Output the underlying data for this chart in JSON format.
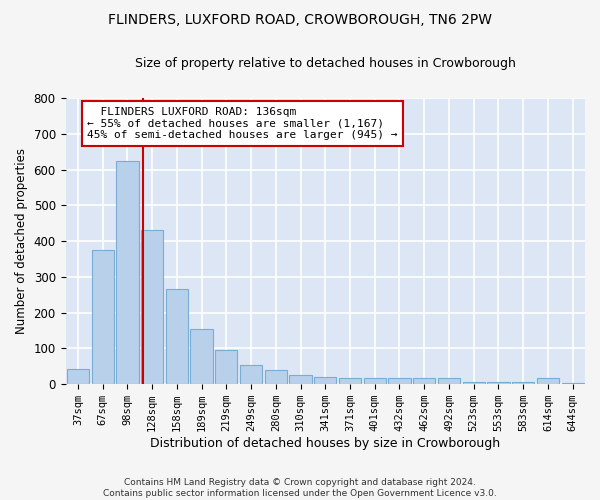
{
  "title": "FLINDERS, LUXFORD ROAD, CROWBOROUGH, TN6 2PW",
  "subtitle": "Size of property relative to detached houses in Crowborough",
  "xlabel": "Distribution of detached houses by size in Crowborough",
  "ylabel": "Number of detached properties",
  "bar_color": "#b8d0ea",
  "bar_edge_color": "#7aadd4",
  "background_color": "#dce6f5",
  "fig_background_color": "#f5f5f5",
  "grid_color": "#ffffff",
  "categories": [
    "37sqm",
    "67sqm",
    "98sqm",
    "128sqm",
    "158sqm",
    "189sqm",
    "219sqm",
    "249sqm",
    "280sqm",
    "310sqm",
    "341sqm",
    "371sqm",
    "401sqm",
    "432sqm",
    "462sqm",
    "492sqm",
    "523sqm",
    "553sqm",
    "583sqm",
    "614sqm",
    "644sqm"
  ],
  "values": [
    42,
    375,
    625,
    430,
    265,
    155,
    97,
    55,
    40,
    27,
    20,
    17,
    17,
    17,
    17,
    17,
    5,
    5,
    5,
    17,
    3
  ],
  "ylim": [
    0,
    800
  ],
  "yticks": [
    0,
    100,
    200,
    300,
    400,
    500,
    600,
    700,
    800
  ],
  "vline_color": "#cc0000",
  "vline_pos": 2.62,
  "annotation_line1": "  FLINDERS LUXFORD ROAD: 136sqm",
  "annotation_line2": "← 55% of detached houses are smaller (1,167)",
  "annotation_line3": "45% of semi-detached houses are larger (945) →",
  "annotation_box_color": "#ffffff",
  "annotation_box_edge_color": "#cc0000",
  "footer": "Contains HM Land Registry data © Crown copyright and database right 2024.\nContains public sector information licensed under the Open Government Licence v3.0."
}
